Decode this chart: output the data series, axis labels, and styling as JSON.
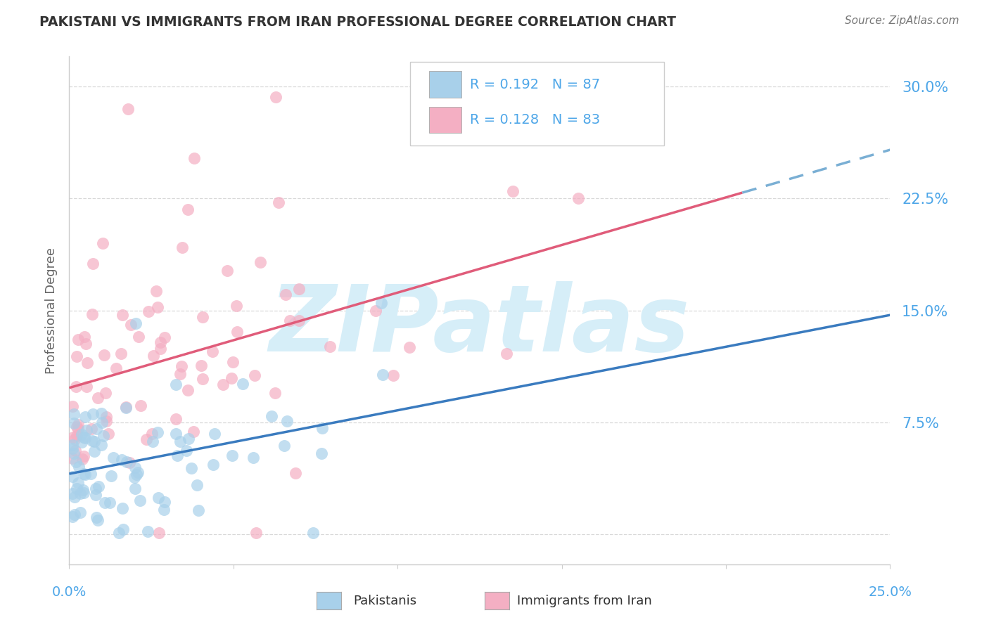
{
  "title": "PAKISTANI VS IMMIGRANTS FROM IRAN PROFESSIONAL DEGREE CORRELATION CHART",
  "source": "Source: ZipAtlas.com",
  "ylabel": "Professional Degree",
  "ytick_values": [
    0.0,
    0.075,
    0.15,
    0.225,
    0.3
  ],
  "ytick_labels": [
    "",
    "7.5%",
    "15.0%",
    "22.5%",
    "30.0%"
  ],
  "xlim": [
    0.0,
    0.25
  ],
  "ylim": [
    -0.02,
    0.32
  ],
  "r1": 0.192,
  "n1": 87,
  "r2": 0.128,
  "n2": 83,
  "legend_label1": "Pakistanis",
  "legend_label2": "Immigrants from Iran",
  "color_blue": "#a8d0ea",
  "color_pink": "#f4afc3",
  "line_color_blue": "#3a7bbf",
  "line_color_pink": "#e05c7a",
  "line_color_dash": "#7aafd4",
  "axis_value_color": "#4da6e8",
  "axis_label_color": "#666666",
  "title_color": "#333333",
  "background_color": "#ffffff",
  "grid_color": "#d8d8d8",
  "watermark_color": "#d6eef8",
  "source_color": "#777777"
}
